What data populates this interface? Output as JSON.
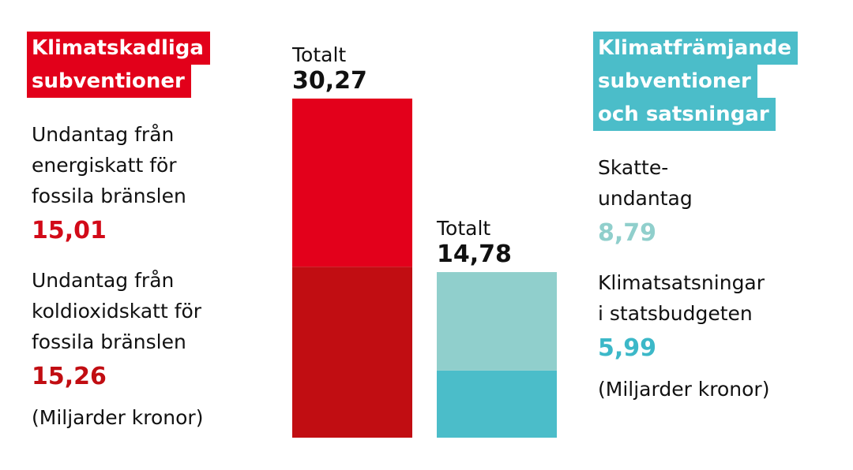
{
  "chart_data": {
    "type": "bar",
    "stacked": true,
    "groups": [
      {
        "title_lines": [
          "Klimatskadliga",
          "subventioner"
        ],
        "title_color": "#e2001a",
        "total_label": "Totalt",
        "total": "30,27",
        "series": [
          {
            "name_lines": [
              "Undantag från",
              "energiskatt för",
              "fossila bränslen"
            ],
            "color": "#e3001b",
            "label_color": "#d20a18",
            "value": 15.01,
            "value_label": "15,01"
          },
          {
            "name_lines": [
              "Undantag från",
              "koldioxidskatt för",
              "fossila bränslen"
            ],
            "color": "#c10d12",
            "label_color": "#c10d12",
            "value": 15.26,
            "value_label": "15,26"
          }
        ],
        "note": "(Miljarder kronor)"
      },
      {
        "title_lines": [
          "Klimatfrämjande",
          "subventioner",
          "och satsningar"
        ],
        "title_color": "#4bbdc9",
        "total_label": "Totalt",
        "total": "14,78",
        "series": [
          {
            "name_lines": [
              "Skatte-",
              "undantag"
            ],
            "color": "#90cfcc",
            "label_color": "#90cfcc",
            "value": 8.79,
            "value_label": "8,79"
          },
          {
            "name_lines": [
              "Klimatsatsningar",
              "i statsbudgeten"
            ],
            "color": "#4bbdc9",
            "label_color": "#3cb8c8",
            "value": 5.99,
            "value_label": "5,99"
          }
        ],
        "note": "(Miljarder kronor)"
      }
    ]
  }
}
